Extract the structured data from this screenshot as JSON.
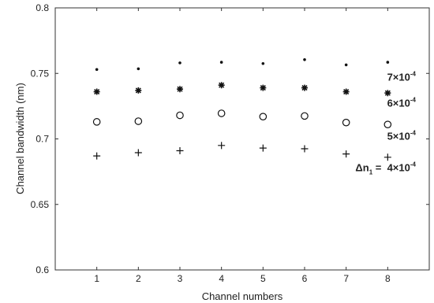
{
  "chart_data": {
    "type": "scatter",
    "title": "",
    "xlabel": "Channel numbers",
    "ylabel": "Channel bandwidth (nm)",
    "xlim": [
      0,
      9
    ],
    "ylim": [
      0.6,
      0.8
    ],
    "x_ticks": [
      1,
      2,
      3,
      4,
      5,
      6,
      7,
      8
    ],
    "y_ticks": [
      0.6,
      0.65,
      0.7,
      0.75,
      0.8
    ],
    "y_tick_labels": [
      "0.6",
      "0.65",
      "0.7",
      "0.75",
      "0.8"
    ],
    "grid": false,
    "legend": "none",
    "series": [
      {
        "marker": "dot",
        "x": [
          1,
          2,
          3,
          4,
          5,
          6,
          7,
          8
        ],
        "values": [
          0.753,
          0.7535,
          0.758,
          0.7585,
          0.7575,
          0.7605,
          0.7565,
          0.7585
        ],
        "annotation": {
          "base": "7×10",
          "exponent": "-4"
        }
      },
      {
        "marker": "asterisk",
        "x": [
          1,
          2,
          3,
          4,
          5,
          6,
          7,
          8
        ],
        "values": [
          0.736,
          0.737,
          0.738,
          0.741,
          0.739,
          0.739,
          0.736,
          0.735
        ],
        "annotation": {
          "base": "6×10",
          "exponent": "-4"
        }
      },
      {
        "marker": "circle",
        "x": [
          1,
          2,
          3,
          4,
          5,
          6,
          7,
          8
        ],
        "values": [
          0.713,
          0.7135,
          0.718,
          0.7195,
          0.717,
          0.7175,
          0.7125,
          0.711
        ],
        "annotation": {
          "base": "5×10",
          "exponent": "-4"
        }
      },
      {
        "marker": "plus",
        "x": [
          1,
          2,
          3,
          4,
          5,
          6,
          7,
          8
        ],
        "values": [
          0.687,
          0.6895,
          0.691,
          0.695,
          0.693,
          0.6925,
          0.6885,
          0.686
        ],
        "annotation": {
          "prefix": "Δn",
          "prefix_sub": "1",
          "prefix_suffix": " = ",
          "base": "4×10",
          "exponent": "-4"
        }
      }
    ]
  }
}
